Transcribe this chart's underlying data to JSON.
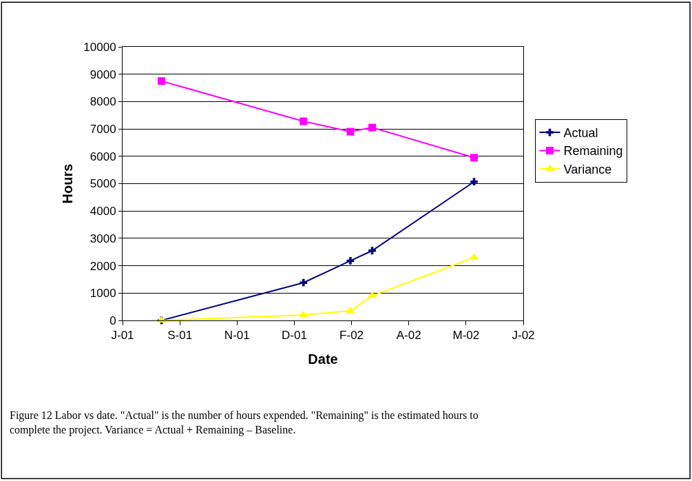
{
  "chart_data": {
    "type": "line",
    "xlabel": "Date",
    "ylabel": "Hours",
    "x": [
      "2001-08-30",
      "2002-01-01",
      "2002-02-11",
      "2002-03-02",
      "2002-05-30"
    ],
    "series": [
      {
        "name": "Actual",
        "color": "#000080",
        "marker": "cross",
        "values": [
          0,
          1380,
          2180,
          2550,
          5070
        ]
      },
      {
        "name": "Remaining",
        "color": "#ff00ff",
        "marker": "square",
        "values": [
          8750,
          7280,
          6900,
          7050,
          5950
        ]
      },
      {
        "name": "Variance",
        "color": "#ffff00",
        "marker": "triangle",
        "values": [
          0,
          200,
          350,
          900,
          2300
        ]
      }
    ],
    "xlim": [
      "2001-07-27",
      "2002-07-12"
    ],
    "xticks": [
      {
        "value": "2001-07-27",
        "label": "J-01"
      },
      {
        "value": "2001-09-15",
        "label": "S-01"
      },
      {
        "value": "2001-11-04",
        "label": "N-01"
      },
      {
        "value": "2001-12-24",
        "label": "D-01"
      },
      {
        "value": "2002-02-12",
        "label": "F-02"
      },
      {
        "value": "2002-04-03",
        "label": "A-02"
      },
      {
        "value": "2002-05-23",
        "label": "M-02"
      },
      {
        "value": "2002-07-12",
        "label": "J-02"
      }
    ],
    "ylim": [
      0,
      10000
    ],
    "yticks": [
      0,
      1000,
      2000,
      3000,
      4000,
      5000,
      6000,
      7000,
      8000,
      9000,
      10000
    ],
    "grid": "y",
    "legend": "right",
    "annotations": [
      "Figure 12 Labor vs date. \"Actual\" is the number of hours expended. \"Remaining\" is the estimated hours to complete the project. Variance = Actual + Remaining – Baseline."
    ]
  }
}
